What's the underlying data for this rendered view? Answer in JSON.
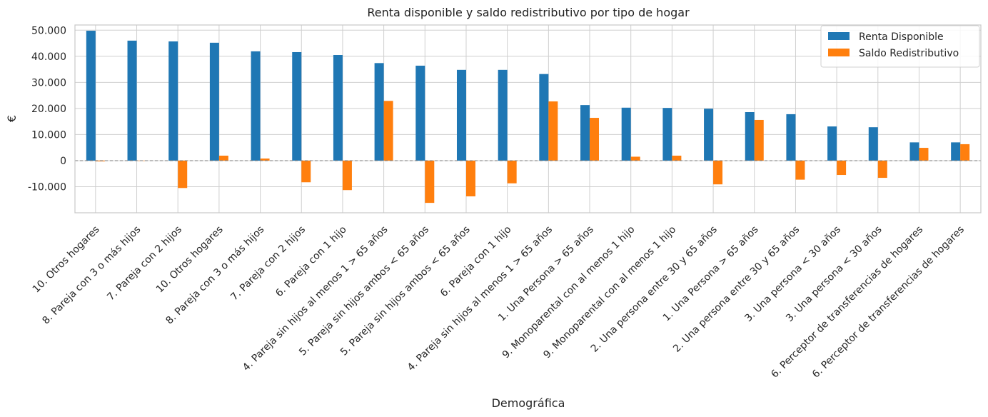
{
  "chart_data": {
    "type": "bar",
    "title": "Renta disponible y saldo redistributivo por tipo de hogar",
    "xlabel": "Demográfica",
    "ylabel": "€",
    "ylim": [
      -20000,
      52000
    ],
    "yticks": [
      -10000,
      0,
      10000,
      20000,
      30000,
      40000,
      50000
    ],
    "ytick_labels": [
      "-10.000",
      "0",
      "10.000",
      "20.000",
      "30.000",
      "40.000",
      "50.000"
    ],
    "grid": true,
    "legend_position": "top-right",
    "categories": [
      "10. Otros hogares",
      "8. Pareja con 3 o más hijos",
      "7. Pareja con 2 hijos",
      "10. Otros hogares",
      "8. Pareja con 3 o más hijos",
      "7. Pareja con 2 hijos",
      "6. Pareja con 1 hijo",
      "4. Pareja sin hijos al menos 1 > 65 años",
      "5. Pareja sin hijos ambos < 65 años",
      "5. Pareja sin hijos ambos < 65 años",
      "6. Pareja con 1 hijo",
      "4. Pareja sin hijos al menos 1 > 65 años",
      "1. Una Persona > 65 años",
      "9. Monoparental con al menos 1 hijo",
      "9. Monoparental con al menos 1 hijo",
      "2. Una persona entre 30 y 65 años",
      "1. Una Persona > 65 años",
      "2. Una persona entre 30 y 65 años",
      "3. Una persona < 30 años",
      "3. Una persona < 30 años",
      "6. Perceptor de transferencias de hogares",
      "6. Perceptor de transferencias de hogares"
    ],
    "series": [
      {
        "name": "Renta Disponible",
        "color": "#1f77b4",
        "values": [
          49800,
          46000,
          45700,
          45200,
          41900,
          41600,
          40500,
          37400,
          36400,
          34800,
          34800,
          33200,
          21300,
          20300,
          20200,
          19900,
          18600,
          17800,
          13100,
          12800,
          7000,
          7000
        ]
      },
      {
        "name": "Saldo Redistributivo",
        "color": "#ff7f0e",
        "values": [
          -300,
          0,
          -10500,
          1900,
          800,
          -8300,
          -11300,
          22900,
          -16200,
          -13700,
          -8700,
          22700,
          16400,
          1500,
          1900,
          -9100,
          15600,
          -7300,
          -5500,
          -6600,
          4900,
          6300
        ]
      }
    ]
  }
}
